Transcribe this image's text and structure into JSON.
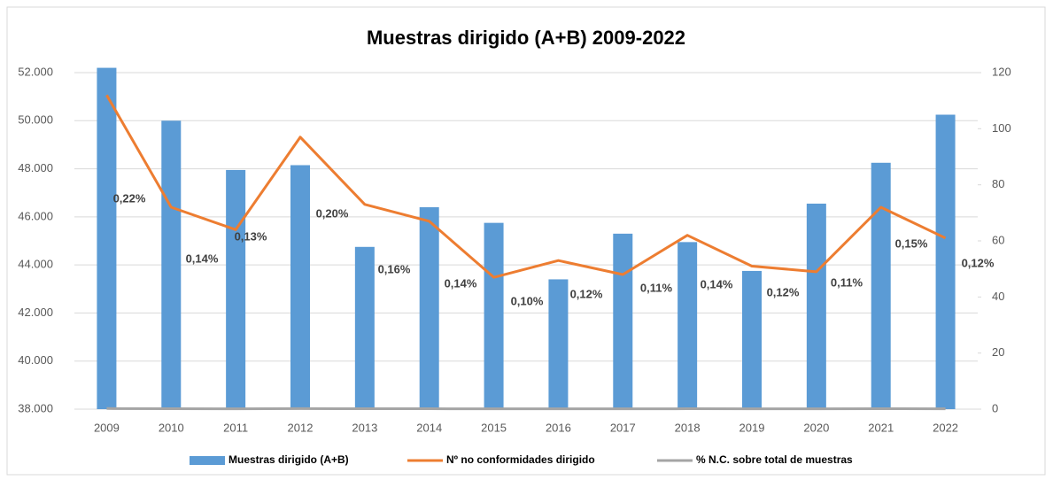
{
  "chart_data": {
    "type": "bar_line",
    "title": "Muestras dirigido (A+B) 2009-2022",
    "categories": [
      "2009",
      "2010",
      "2011",
      "2012",
      "2013",
      "2014",
      "2015",
      "2016",
      "2017",
      "2018",
      "2019",
      "2020",
      "2021",
      "2022"
    ],
    "series": [
      {
        "name": "Muestras dirigido  (A+B)",
        "type": "bar",
        "color": "#5b9bd5",
        "values": [
          52200,
          50000,
          47950,
          48150,
          44750,
          46400,
          45750,
          43400,
          45300,
          44950,
          43750,
          46550,
          48250,
          50250
        ]
      },
      {
        "name": "Nº no conformidades dirigido",
        "type": "line",
        "axis": "y2",
        "color": "#ed7d31",
        "values": [
          112,
          72,
          64,
          97,
          73,
          67,
          47,
          53,
          48,
          62,
          51,
          49,
          72,
          61
        ]
      },
      {
        "name": "% N.C. sobre total de muestras",
        "type": "line",
        "axis": "y2",
        "color": "#a5a5a5",
        "values": [
          0.22,
          0.14,
          0.13,
          0.2,
          0.16,
          0.14,
          0.1,
          0.12,
          0.11,
          0.14,
          0.12,
          0.11,
          0.15,
          0.12
        ],
        "value_labels": [
          "0,22%",
          "0,14%",
          "0,13%",
          "0,20%",
          "0,16%",
          "0,14%",
          "0,10%",
          "0,12%",
          "0,11%",
          "0,14%",
          "0,12%",
          "0,11%",
          "0,15%",
          "0,12%"
        ]
      }
    ],
    "ylim": [
      38000,
      52000
    ],
    "yticks": [
      {
        "value": 38000,
        "label": "38.000"
      },
      {
        "value": 40000,
        "label": "40.000"
      },
      {
        "value": 42000,
        "label": "42.000"
      },
      {
        "value": 44000,
        "label": "44.000"
      },
      {
        "value": 46000,
        "label": "46.000"
      },
      {
        "value": 48000,
        "label": "48.000"
      },
      {
        "value": 50000,
        "label": "50.000"
      },
      {
        "value": 52000,
        "label": "52.000"
      }
    ],
    "y2lim": [
      0,
      120
    ],
    "y2ticks": [
      0,
      20,
      40,
      60,
      80,
      100,
      120
    ],
    "grid": true,
    "legend": "bottom"
  }
}
